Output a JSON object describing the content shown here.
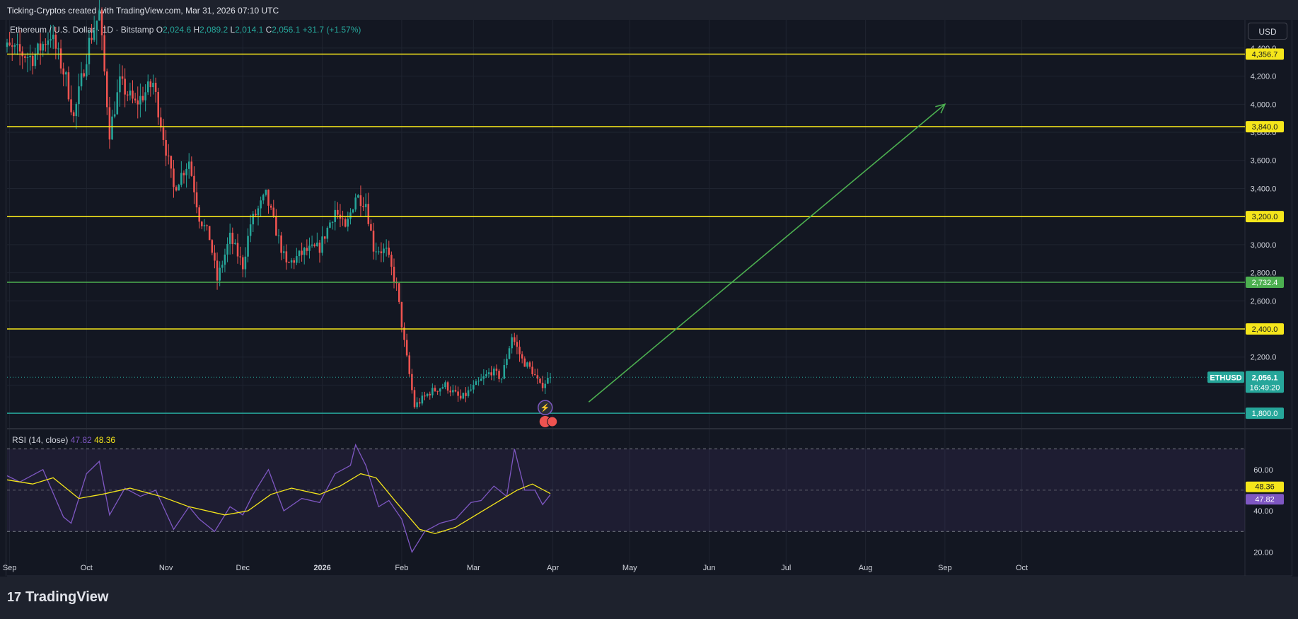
{
  "header": {
    "caption": "Ticking-Cryptos created with TradingView.com, Mar 31, 2026 07:10 UTC"
  },
  "symbol_legend": {
    "name": "Ethereum / U.S. Dollar · 1D · Bitstamp",
    "open_label": "O",
    "open": "2,024.6",
    "high_label": "H",
    "high": "2,089.2",
    "low_label": "L",
    "low": "2,014.1",
    "close_label": "C",
    "close": "2,056.1",
    "change": "+31.7 (+1.57%)"
  },
  "currency_button": "USD",
  "rsi_legend": {
    "label": "RSI (14, close)",
    "value_a": "47.82",
    "value_b": "48.36"
  },
  "brand": {
    "wordmark": "TradingView",
    "logo_glyph": "17"
  },
  "colors": {
    "background": "#131722",
    "up": "#26a69a",
    "down": "#ef5350",
    "level_yellow": "#f5e61b",
    "level_green": "#4caf50",
    "level_teal": "#26a69a",
    "arrow": "#4caf50",
    "rsi_line": "#7e57c2",
    "rsi_ma": "#f5e61b"
  },
  "chart_data": {
    "type": "candlestick",
    "x_axis_ticks": [
      "Sep",
      "Oct",
      "Nov",
      "Dec",
      "2026",
      "Feb",
      "Mar",
      "Apr",
      "May",
      "Jun",
      "Jul",
      "Aug",
      "Sep",
      "Oct"
    ],
    "price_axis_ticks": [
      "4,400.0",
      "4,200.0",
      "4,000.0",
      "3,800.0",
      "3,600.0",
      "3,400.0",
      "3,200.0",
      "3,000.0",
      "2,800.0",
      "2,600.0",
      "2,400.0",
      "2,200.0",
      "2,000.0",
      "1,800.0"
    ],
    "ylim": [
      1720,
      4460
    ],
    "last_price": {
      "symbol": "ETHUSD",
      "price": "2,056.1",
      "countdown": "16:49:20"
    },
    "horizontal_levels": [
      {
        "price": 4356.7,
        "label": "4,356.7",
        "color": "yellow"
      },
      {
        "price": 3840.0,
        "label": "3,840.0",
        "color": "yellow"
      },
      {
        "price": 3200.0,
        "label": "3,200.0",
        "color": "yellow"
      },
      {
        "price": 2732.4,
        "label": "2,732.4",
        "color": "green"
      },
      {
        "price": 2400.0,
        "label": "2,400.0",
        "color": "yellow"
      },
      {
        "price": 1800.0,
        "label": "1,800.0",
        "color": "teal"
      }
    ],
    "projection_arrow": {
      "from": {
        "date": "2026-04-15",
        "price": 1880
      },
      "to": {
        "date": "2026-09-01",
        "price": 4000
      }
    },
    "price_path": [
      [
        "2025-08-27",
        4420
      ],
      [
        "2025-09-03",
        4380
      ],
      [
        "2025-09-10",
        4330
      ],
      [
        "2025-09-17",
        4500
      ],
      [
        "2025-09-23",
        4180
      ],
      [
        "2025-09-26",
        3900
      ],
      [
        "2025-10-02",
        4440
      ],
      [
        "2025-10-06",
        4650
      ],
      [
        "2025-10-10",
        3800
      ],
      [
        "2025-10-14",
        4150
      ],
      [
        "2025-10-20",
        4000
      ],
      [
        "2025-10-27",
        4150
      ],
      [
        "2025-11-04",
        3400
      ],
      [
        "2025-11-10",
        3600
      ],
      [
        "2025-11-14",
        3200
      ],
      [
        "2025-11-18",
        3050
      ],
      [
        "2025-11-21",
        2750
      ],
      [
        "2025-11-26",
        3050
      ],
      [
        "2025-12-01",
        2850
      ],
      [
        "2025-12-04",
        3150
      ],
      [
        "2025-12-10",
        3350
      ],
      [
        "2025-12-14",
        3100
      ],
      [
        "2025-12-18",
        2850
      ],
      [
        "2025-12-25",
        2950
      ],
      [
        "2025-12-31",
        2980
      ],
      [
        "2026-01-06",
        3250
      ],
      [
        "2026-01-10",
        3100
      ],
      [
        "2026-01-14",
        3350
      ],
      [
        "2026-01-18",
        3300
      ],
      [
        "2026-01-21",
        2980
      ],
      [
        "2026-01-26",
        2950
      ],
      [
        "2026-01-30",
        2700
      ],
      [
        "2026-02-02",
        2300
      ],
      [
        "2026-02-06",
        1850
      ],
      [
        "2026-02-12",
        1950
      ],
      [
        "2026-02-18",
        2000
      ],
      [
        "2026-02-24",
        1900
      ],
      [
        "2026-03-02",
        2000
      ],
      [
        "2026-03-08",
        2100
      ],
      [
        "2026-03-12",
        2050
      ],
      [
        "2026-03-16",
        2350
      ],
      [
        "2026-03-20",
        2180
      ],
      [
        "2026-03-24",
        2100
      ],
      [
        "2026-03-27",
        1990
      ],
      [
        "2026-03-31",
        2056.1
      ]
    ],
    "rsi": {
      "label": "RSI (14, close)",
      "ticks": [
        "60.00",
        "40.00",
        "20.00"
      ],
      "ylim": [
        15,
        75
      ],
      "band": [
        30,
        70
      ],
      "midline": 50,
      "rsi_value": "47.82",
      "ma_value": "48.36",
      "rsi_path": [
        [
          "2025-08-27",
          57
        ],
        [
          "2025-09-05",
          54
        ],
        [
          "2025-09-14",
          60
        ],
        [
          "2025-09-22",
          37
        ],
        [
          "2025-09-25",
          34
        ],
        [
          "2025-10-01",
          58
        ],
        [
          "2025-10-06",
          64
        ],
        [
          "2025-10-10",
          38
        ],
        [
          "2025-10-16",
          51
        ],
        [
          "2025-10-22",
          47
        ],
        [
          "2025-10-28",
          50
        ],
        [
          "2025-11-04",
          31
        ],
        [
          "2025-11-10",
          42
        ],
        [
          "2025-11-14",
          36
        ],
        [
          "2025-11-20",
          30
        ],
        [
          "2025-11-26",
          42
        ],
        [
          "2025-12-01",
          38
        ],
        [
          "2025-12-05",
          48
        ],
        [
          "2025-12-11",
          60
        ],
        [
          "2025-12-17",
          40
        ],
        [
          "2025-12-24",
          46
        ],
        [
          "2025-12-31",
          44
        ],
        [
          "2026-01-06",
          58
        ],
        [
          "2026-01-12",
          62
        ],
        [
          "2026-01-14",
          72
        ],
        [
          "2026-01-18",
          62
        ],
        [
          "2026-01-23",
          42
        ],
        [
          "2026-01-27",
          45
        ],
        [
          "2026-02-01",
          36
        ],
        [
          "2026-02-05",
          20
        ],
        [
          "2026-02-10",
          30
        ],
        [
          "2026-02-16",
          34
        ],
        [
          "2026-02-22",
          36
        ],
        [
          "2026-02-28",
          44
        ],
        [
          "2026-03-04",
          45
        ],
        [
          "2026-03-09",
          52
        ],
        [
          "2026-03-14",
          47
        ],
        [
          "2026-03-17",
          70
        ],
        [
          "2026-03-21",
          50
        ],
        [
          "2026-03-25",
          50
        ],
        [
          "2026-03-28",
          43
        ],
        [
          "2026-03-31",
          47.82
        ]
      ],
      "ma_path": [
        [
          "2025-08-27",
          55
        ],
        [
          "2025-09-10",
          53
        ],
        [
          "2025-09-18",
          56
        ],
        [
          "2025-09-28",
          46
        ],
        [
          "2025-10-07",
          48
        ],
        [
          "2025-10-18",
          51
        ],
        [
          "2025-10-30",
          47
        ],
        [
          "2025-11-10",
          42
        ],
        [
          "2025-11-24",
          38
        ],
        [
          "2025-12-03",
          40
        ],
        [
          "2025-12-12",
          48
        ],
        [
          "2025-12-20",
          51
        ],
        [
          "2025-12-31",
          48
        ],
        [
          "2026-01-08",
          52
        ],
        [
          "2026-01-16",
          58
        ],
        [
          "2026-01-22",
          56
        ],
        [
          "2026-01-30",
          44
        ],
        [
          "2026-02-08",
          31
        ],
        [
          "2026-02-14",
          29
        ],
        [
          "2026-02-22",
          32
        ],
        [
          "2026-03-02",
          38
        ],
        [
          "2026-03-10",
          44
        ],
        [
          "2026-03-18",
          50
        ],
        [
          "2026-03-24",
          53
        ],
        [
          "2026-03-31",
          48.36
        ]
      ]
    }
  }
}
